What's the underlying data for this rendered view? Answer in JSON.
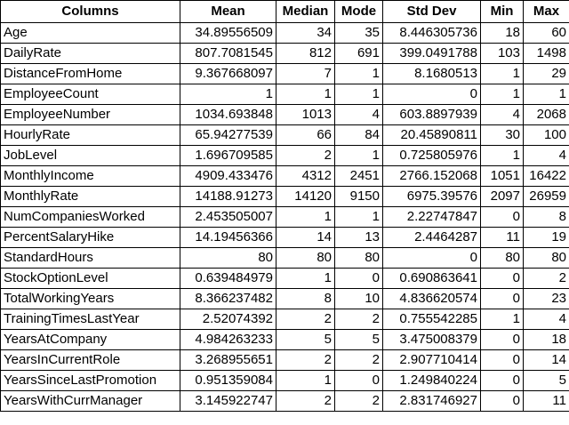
{
  "table": {
    "headers": [
      "Columns",
      "Mean",
      "Median",
      "Mode",
      "Std Dev",
      "Min",
      "Max"
    ],
    "rows": [
      [
        "Age",
        "34.89556509",
        "34",
        "35",
        "8.446305736",
        "18",
        "60"
      ],
      [
        "DailyRate",
        "807.7081545",
        "812",
        "691",
        "399.0491788",
        "103",
        "1498"
      ],
      [
        "DistanceFromHome",
        "9.367668097",
        "7",
        "1",
        "8.1680513",
        "1",
        "29"
      ],
      [
        "EmployeeCount",
        "1",
        "1",
        "1",
        "0",
        "1",
        "1"
      ],
      [
        "EmployeeNumber",
        "1034.693848",
        "1013",
        "4",
        "603.8897939",
        "4",
        "2068"
      ],
      [
        "HourlyRate",
        "65.94277539",
        "66",
        "84",
        "20.45890811",
        "30",
        "100"
      ],
      [
        "JobLevel",
        "1.696709585",
        "2",
        "1",
        "0.725805976",
        "1",
        "4"
      ],
      [
        "MonthlyIncome",
        "4909.433476",
        "4312",
        "2451",
        "2766.152068",
        "1051",
        "16422"
      ],
      [
        "MonthlyRate",
        "14188.91273",
        "14120",
        "9150",
        "6975.39576",
        "2097",
        "26959"
      ],
      [
        "NumCompaniesWorked",
        "2.453505007",
        "1",
        "1",
        "2.22747847",
        "0",
        "8"
      ],
      [
        "PercentSalaryHike",
        "14.19456366",
        "14",
        "13",
        "2.4464287",
        "11",
        "19"
      ],
      [
        "StandardHours",
        "80",
        "80",
        "80",
        "0",
        "80",
        "80"
      ],
      [
        "StockOptionLevel",
        "0.639484979",
        "1",
        "0",
        "0.690863641",
        "0",
        "2"
      ],
      [
        "TotalWorkingYears",
        "8.366237482",
        "8",
        "10",
        "4.836620574",
        "0",
        "23"
      ],
      [
        "TrainingTimesLastYear",
        "2.52074392",
        "2",
        "2",
        "0.755542285",
        "1",
        "4"
      ],
      [
        "YearsAtCompany",
        "4.984263233",
        "5",
        "5",
        "3.475008379",
        "0",
        "18"
      ],
      [
        "YearsInCurrentRole",
        "3.268955651",
        "2",
        "2",
        "2.907710414",
        "0",
        "14"
      ],
      [
        "YearsSinceLastPromotion",
        "0.951359084",
        "1",
        "0",
        "1.249840224",
        "0",
        "5"
      ],
      [
        "YearsWithCurrManager",
        "3.145922747",
        "2",
        "2",
        "2.831746927",
        "0",
        "11"
      ]
    ]
  }
}
